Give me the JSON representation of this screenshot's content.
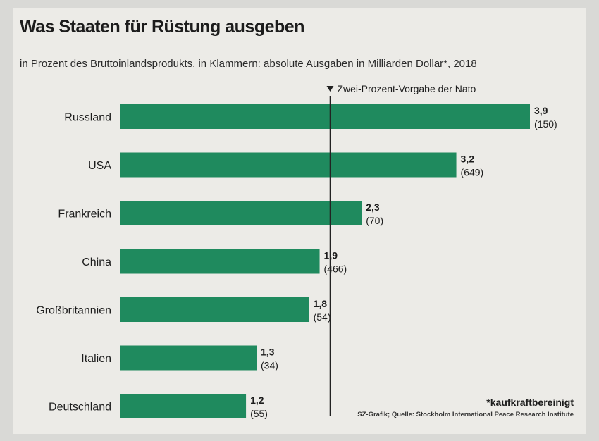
{
  "chart_data": {
    "type": "bar",
    "orientation": "horizontal",
    "title": "Was Staaten für Rüstung ausgeben",
    "subtitle": "in Prozent des Bruttoinlandsprodukts, in Klammern: absolute Ausgaben in Milliarden Dollar*, 2018",
    "categories": [
      "Russland",
      "USA",
      "Frankreich",
      "China",
      "Großbritannien",
      "Italien",
      "Deutschland"
    ],
    "values": [
      3.9,
      3.2,
      2.3,
      1.9,
      1.8,
      1.3,
      1.2
    ],
    "value_labels": [
      "3,9",
      "3,2",
      "2,3",
      "1,9",
      "1,8",
      "1,3",
      "1,2"
    ],
    "absolute_labels": [
      "(150)",
      "(649)",
      "(70)",
      "(466)",
      "(54)",
      "(34)",
      "(55)"
    ],
    "reference_line": {
      "value": 2.0,
      "label": "Zwei-Prozent-Vorgabe der Nato"
    },
    "xlim": [
      0,
      3.9
    ],
    "grid": false,
    "bar_color": "#1f8a5e"
  },
  "footnote": "*kaufkraftbereinigt",
  "source": "SZ-Grafik; Quelle: Stockholm International Peace Research Institute"
}
